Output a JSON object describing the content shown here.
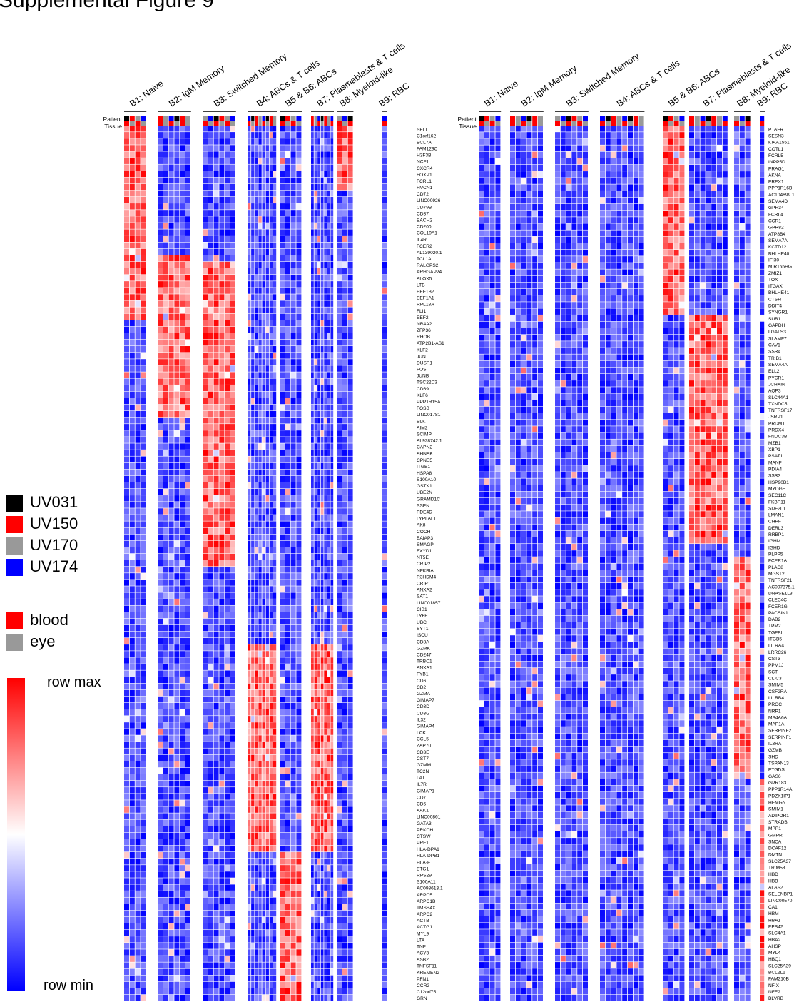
{
  "figure": {
    "title": "Supplemental Figure 9",
    "row_labels": {
      "patient": "Patient",
      "tissue": "Tissue"
    }
  },
  "legend": {
    "patients": [
      {
        "label": "UV031",
        "color": "#000000"
      },
      {
        "label": "UV150",
        "color": "#ff0000"
      },
      {
        "label": "UV170",
        "color": "#999999"
      },
      {
        "label": "UV174",
        "color": "#0000ff"
      }
    ],
    "tissues": [
      {
        "label": "blood",
        "color": "#ff0000"
      },
      {
        "label": "eye",
        "color": "#999999"
      }
    ],
    "scale_max": "row max",
    "scale_min": "row min"
  },
  "chart_data": [
    {
      "type": "heatmap",
      "panel": "left",
      "scale": "row-normalized (row min = blue, row max = red)",
      "clusters": [
        "B1: Naive",
        "B2: IgM Memory",
        "B3: Switched Memory",
        "B4: ABCs & T cells",
        "B5 & B6: ABCs",
        "B7: Plasmablasts & T cells",
        "B8: Myeloid-like",
        "B9: RBC"
      ],
      "cluster_columns": [
        4,
        6,
        6,
        8,
        4,
        7,
        3,
        1
      ],
      "genes": [
        "SELL",
        "C1orf162",
        "BCL7A",
        "FAM129C",
        "H3F3B",
        "NCF1",
        "CXCR4",
        "FOXP1",
        "FCRL1",
        "HVCN1",
        "CD72",
        "LINC00926",
        "CD79B",
        "CD37",
        "BACH2",
        "CD200",
        "COL19A1",
        "IL4R",
        "FCER2",
        "AL139020.1",
        "TCL1A",
        "RALGPS2",
        "ARHGAP24",
        "ALOX5",
        "LTB",
        "EEF1B2",
        "EEF1A1",
        "RPL18A",
        "FLI1",
        "EEF2",
        "NR4A2",
        "ZFP36",
        "RHOB",
        "ATP2B1-AS1",
        "KLF2",
        "JUN",
        "DUSP1",
        "FOS",
        "JUNB",
        "TSC22D3",
        "CD69",
        "KLF6",
        "PPP1R15A",
        "FOSB",
        "LINC01781",
        "BLK",
        "AIM2",
        "SCIMP",
        "AL928742.1",
        "CAPN2",
        "AHNAK",
        "CPNE5",
        "ITGB1",
        "HSPA8",
        "S100A10",
        "GSTK1",
        "UBE2N",
        "GRAMD1C",
        "SSPN",
        "PDE4D",
        "LYPLAL1",
        "AK8",
        "COCH",
        "BAIAP3",
        "SMAGP",
        "FXYD1",
        "NT5E",
        "CRIP2",
        "NFKBIA",
        "R3HDM4",
        "CRIP1",
        "ANXA2",
        "SAT1",
        "LINC01857",
        "CIB1",
        "LY6E",
        "UBC",
        "SYT1",
        "ISCU",
        "CD8A",
        "GZMK",
        "CD247",
        "TRBC1",
        "ANXA1",
        "FYB1",
        "CD6",
        "CD2",
        "GZMA",
        "GIMAP7",
        "CD3D",
        "CD3G",
        "IL32",
        "GIMAP4",
        "LCK",
        "CCL5",
        "ZAP70",
        "CD3E",
        "CST7",
        "GZMM",
        "TC2N",
        "LAT",
        "IL7R",
        "GIMAP1",
        "CD7",
        "CD5",
        "AAK1",
        "LINC00861",
        "GATA3",
        "PRKCH",
        "CTSW",
        "PRF1",
        "HLA-DPA1",
        "HLA-DPB1",
        "HLA-E",
        "BTG1",
        "RPS29",
        "S100A11",
        "AC098613.1",
        "ARPC5",
        "ARPC1B",
        "TMSB4X",
        "ARPC2",
        "ACTB",
        "ACTG1",
        "MYL9",
        "LTA",
        "TNF",
        "ACY3",
        "ASB2",
        "TNFSF11",
        "KREMEN2",
        "PFN1",
        "CCR2",
        "C12orf75",
        "GRN"
      ],
      "values": "encoded as colored cells (row min to row max)"
    },
    {
      "type": "heatmap",
      "panel": "right",
      "scale": "row-normalized (row min = blue, row max = red)",
      "clusters": [
        "B1: Naive",
        "B2: IgM Memory",
        "B3: Switched Memory",
        "B4: ABCs & T cells",
        "B5 & B6: ABCs",
        "B7: Plasmablasts & T cells",
        "B8: Myeloid-like",
        "B9: RBC"
      ],
      "cluster_columns": [
        4,
        6,
        6,
        8,
        4,
        7,
        3,
        1
      ],
      "genes": [
        "PTAFR",
        "SESN3",
        "KIAA1551",
        "COTL1",
        "FCRL5",
        "INPP5D",
        "PRAG1",
        "AKNA",
        "PREX1",
        "PPP1R16B",
        "AC104699.1",
        "SEMA4D",
        "GPR34",
        "FCRL4",
        "CCR1",
        "GPR82",
        "ATP8B4",
        "SEMA7A",
        "KCTD12",
        "BHLHE40",
        "IFI30",
        "MIR155HG",
        "ZMIZ1",
        "TOX",
        "ITGAX",
        "BHLHE41",
        "CTSH",
        "DDIT4",
        "SYNGR1",
        "SUB1",
        "GAPDH",
        "LGALS3",
        "SLAMF7",
        "CAV1",
        "SSR4",
        "TRIB1",
        "SEMA4A",
        "ELL2",
        "PYCR1",
        "JCHAIN",
        "AQP3",
        "SLC44A1",
        "TXNDC5",
        "TNFRSF17",
        "JSRP1",
        "PRDM1",
        "PRDX4",
        "FNDC3B",
        "MZB1",
        "XBP1",
        "PSAT1",
        "MANF",
        "PDIA4",
        "SSR3",
        "HSP90B1",
        "MYDGF",
        "SEC11C",
        "FKBP11",
        "SDF2L1",
        "LMAN1",
        "CHPF",
        "DERL3",
        "RRBP1",
        "IGHM",
        "IGHD",
        "PLPP5",
        "FCER1A",
        "PLAC8",
        "MGST2",
        "TNFRSF21",
        "AC097375.1",
        "DNASE1L3",
        "CLEC4C",
        "FCER1G",
        "PACSIN1",
        "DAB2",
        "TPM2",
        "TGFBI",
        "ITGB5",
        "LILRA4",
        "LRRC26",
        "CST3",
        "PPM1J",
        "SCT",
        "CLIC3",
        "SMIM5",
        "CSF2RA",
        "LILRB4",
        "PROC",
        "NRP1",
        "MS4A6A",
        "MAP1A",
        "SERPINF2",
        "SERPINF1",
        "IL3RA",
        "GZMB",
        "SHD",
        "TSPAN13",
        "PTGDS",
        "GAS6",
        "GPR183",
        "PPP1R14A",
        "PDZK1IP1",
        "HEMGN",
        "SMIM1",
        "ADIPOR1",
        "STRADB",
        "MPP1",
        "GMPR",
        "SNCA",
        "DCAF12",
        "DMTN",
        "SLC25A37",
        "TRIM58",
        "HBD",
        "HBB",
        "ALAS2",
        "SELENBP1",
        "LINC00570",
        "CA1",
        "HBM",
        "HBA1",
        "EPB42",
        "SLC4A1",
        "HBA2",
        "AHSP",
        "MYL4",
        "HBQ1",
        "SLC25A39",
        "BCL2L1",
        "FAM210B",
        "NFIX",
        "NFE2",
        "BLVRB"
      ],
      "values": "encoded as colored cells (row min to row max)"
    }
  ]
}
